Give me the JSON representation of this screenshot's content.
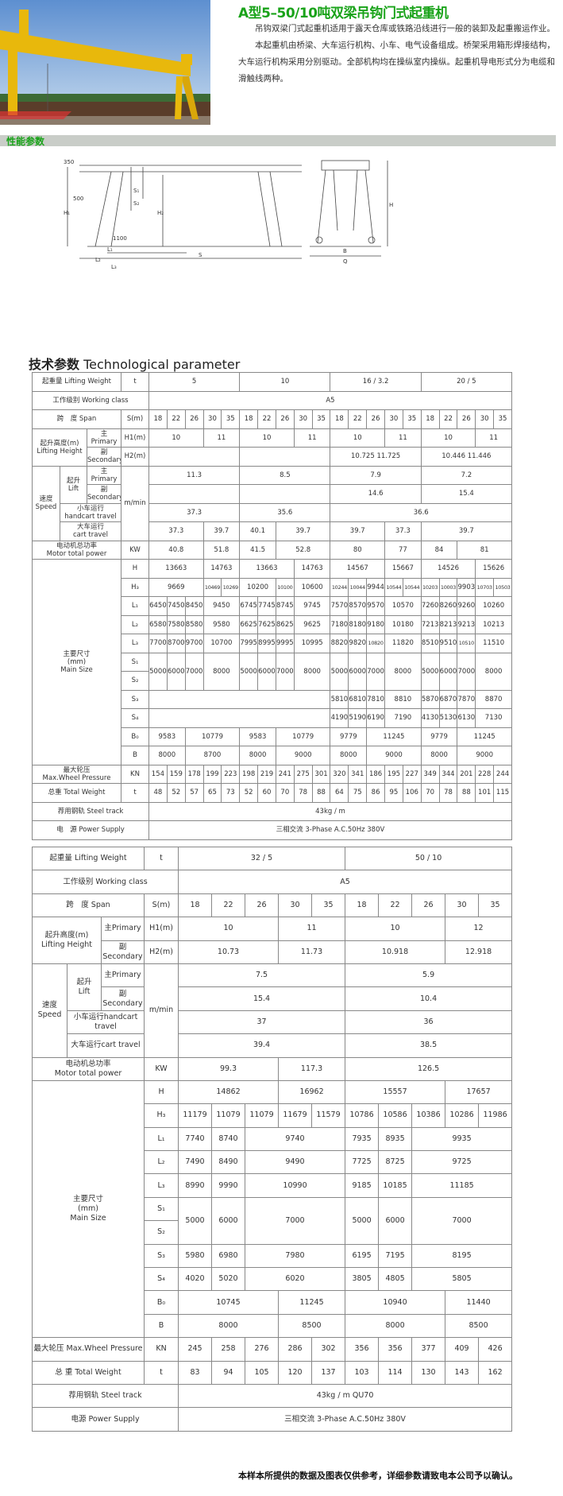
{
  "header": {
    "title": "A型5–50/10吨双梁吊钩门式起重机",
    "paragraphs": [
      "吊钩双梁门式起重机适用于露天仓库或铁路沿线进行一般的装卸及起重搬运作业。",
      "本起重机由桥梁、大车运行机构、小车、电气设备组成。桥架采用箱形焊接结构，大车运行机构采用分别驱动。全部机构均在操纵室内操纵。起重机导电形式分为电缆和滑触线两种。"
    ]
  },
  "section_label": "性能参数",
  "diagram_labels": {
    "d350": "350",
    "d500": "500",
    "s1": "S₁",
    "s2": "S₂",
    "h1": "H₁",
    "h2": "H₂",
    "l1": "L₁",
    "l2": "L₂",
    "l3": "L₃",
    "s": "S",
    "d1100": "1100",
    "h": "H",
    "b": "B",
    "q": "Q"
  },
  "tech_title_cn": "技术参数",
  "tech_title_en": "Technological parameter",
  "tables": [
    {
      "rows": [
        [
          {
            "t": "起重量 Lifting Weight",
            "cs": 3
          },
          "t",
          {
            "t": "5",
            "cs": 5
          },
          {
            "t": "10",
            "cs": 5
          },
          {
            "t": "16 / 3.2",
            "cs": 5
          },
          {
            "t": "20 / 5",
            "cs": 5
          }
        ],
        [
          {
            "t": "工作级别 Working class",
            "cs": 4
          },
          {
            "t": "A5",
            "cs": 20
          }
        ],
        [
          {
            "t": "跨　度 Span",
            "cs": 3
          },
          "S(m)",
          "18",
          "22",
          "26",
          "30",
          "35",
          "18",
          "22",
          "26",
          "30",
          "35",
          "18",
          "22",
          "26",
          "30",
          "35",
          "18",
          "22",
          "26",
          "30",
          "35"
        ],
        [
          {
            "t": "起升高度(m)\nLifting Height",
            "cs": 2,
            "rs": 2
          },
          "主\nPrimary",
          "H1(m)",
          {
            "t": "10",
            "cs": 3
          },
          {
            "t": "11",
            "cs": 2
          },
          {
            "t": "10",
            "cs": 3
          },
          {
            "t": "11",
            "cs": 2
          },
          {
            "t": "10",
            "cs": 3
          },
          {
            "t": "11",
            "cs": 2
          },
          {
            "t": "10",
            "cs": 3
          },
          {
            "t": "11",
            "cs": 2
          }
        ],
        [
          "副\nSecondary",
          "H2(m)",
          {
            "t": "",
            "cs": 5
          },
          {
            "t": "",
            "cs": 5
          },
          {
            "t": "10.725  11.725",
            "cs": 5
          },
          {
            "t": "10.446  11.446",
            "cs": 5
          }
        ],
        [
          {
            "t": "速度\nSpeed",
            "rs": 4
          },
          {
            "t": "起升\nLift",
            "rs": 2
          },
          "主\nPrimary",
          {
            "t": "m/min",
            "rs": 4
          },
          {
            "t": "11.3",
            "cs": 5
          },
          {
            "t": "8.5",
            "cs": 5
          },
          {
            "t": "7.9",
            "cs": 5
          },
          {
            "t": "7.2",
            "cs": 5
          }
        ],
        [
          "副\nSecondary",
          {
            "t": "",
            "cs": 5
          },
          {
            "t": "",
            "cs": 5
          },
          {
            "t": "14.6",
            "cs": 5
          },
          {
            "t": "15.4",
            "cs": 5
          }
        ],
        [
          {
            "t": "小车运行\nhandcart travel",
            "cs": 2
          },
          {
            "t": "37.3",
            "cs": 5
          },
          {
            "t": "35.6",
            "cs": 5
          },
          {
            "t": "36.6",
            "cs": 10
          }
        ],
        [
          {
            "t": "大车运行\ncart travel",
            "cs": 2
          },
          {
            "t": "37.3",
            "cs": 3
          },
          {
            "t": "39.7",
            "cs": 2
          },
          {
            "t": "40.1",
            "cs": 2
          },
          {
            "t": "39.7",
            "cs": 3
          },
          {
            "t": "39.7",
            "cs": 3
          },
          {
            "t": "37.3",
            "cs": 2
          },
          {
            "t": "39.7",
            "cs": 5
          }
        ],
        [
          {
            "t": "电动机总功率\nMotor total power",
            "cs": 3
          },
          "KW",
          {
            "t": "40.8",
            "cs": 3
          },
          {
            "t": "51.8",
            "cs": 2
          },
          {
            "t": "41.5",
            "cs": 2
          },
          {
            "t": "52.8",
            "cs": 3
          },
          {
            "t": "80",
            "cs": 3
          },
          {
            "t": "77",
            "cs": 2
          },
          {
            "t": "84",
            "cs": 2
          },
          {
            "t": "81",
            "cs": 3
          }
        ],
        [
          {
            "t": "主要尺寸\n(mm)\nMain Size",
            "cs": 3,
            "rs": 11
          },
          "H",
          {
            "t": "13663",
            "cs": 3
          },
          {
            "t": "14763",
            "cs": 2
          },
          {
            "t": "13663",
            "cs": 3
          },
          {
            "t": "14763",
            "cs": 2
          },
          {
            "t": "14567",
            "cs": 3
          },
          {
            "t": "15667",
            "cs": 2
          },
          {
            "t": "14526",
            "cs": 3
          },
          {
            "t": "15626",
            "cs": 2
          }
        ],
        [
          "H₃",
          {
            "t": "9669",
            "cs": 3
          },
          "10469",
          "10269",
          {
            "t": "10200",
            "cs": 2
          },
          "10100",
          {
            "t": "10600",
            "cs": 2
          },
          "10244",
          "10044",
          "9944",
          "10544",
          "10544",
          "10203",
          "10003",
          "9903",
          "10703",
          "10503"
        ],
        [
          "L₁",
          "6450",
          "7450",
          "8450",
          {
            "t": "9450",
            "cs": 2
          },
          "6745",
          "7745",
          "8745",
          {
            "t": "9745",
            "cs": 2
          },
          "7570",
          "8570",
          "9570",
          {
            "t": "10570",
            "cs": 2
          },
          "7260",
          "8260",
          "9260",
          {
            "t": "10260",
            "cs": 2
          }
        ],
        [
          "L₂",
          "6580",
          "7580",
          "8580",
          {
            "t": "9580",
            "cs": 2
          },
          "6625",
          "7625",
          "8625",
          {
            "t": "9625",
            "cs": 2
          },
          "7180",
          "8180",
          "9180",
          {
            "t": "10180",
            "cs": 2
          },
          "7213",
          "8213",
          "9213",
          {
            "t": "10213",
            "cs": 2
          }
        ],
        [
          "L₃",
          "7700",
          "8700",
          "9700",
          {
            "t": "10700",
            "cs": 2
          },
          "7995",
          "8995",
          "9995",
          {
            "t": "10995",
            "cs": 2
          },
          "8820",
          "9820",
          "10820",
          {
            "t": "11820",
            "cs": 2
          },
          "8510",
          "9510",
          "10510",
          {
            "t": "11510",
            "cs": 2
          }
        ],
        [
          "S₁",
          {
            "t": "5000",
            "rs": 2
          },
          {
            "t": "6000",
            "rs": 2
          },
          {
            "t": "7000",
            "rs": 2
          },
          {
            "t": "8000",
            "cs": 2,
            "rs": 2
          },
          {
            "t": "5000",
            "rs": 2
          },
          {
            "t": "6000",
            "rs": 2
          },
          {
            "t": "7000",
            "rs": 2
          },
          {
            "t": "8000",
            "cs": 2,
            "rs": 2
          },
          {
            "t": "5000",
            "rs": 2
          },
          {
            "t": "6000",
            "rs": 2
          },
          {
            "t": "7000",
            "rs": 2
          },
          {
            "t": "8000",
            "cs": 2,
            "rs": 2
          },
          {
            "t": "5000",
            "rs": 2
          },
          {
            "t": "6000",
            "rs": 2
          },
          {
            "t": "7000",
            "rs": 2
          },
          {
            "t": "8000",
            "cs": 2,
            "rs": 2
          }
        ],
        [
          "S₂"
        ],
        [
          "S₃",
          {
            "t": "",
            "cs": 10
          },
          "5810",
          "6810",
          "7810",
          {
            "t": "8810",
            "cs": 2
          },
          "5870",
          "6870",
          "7870",
          {
            "t": "8870",
            "cs": 2
          }
        ],
        [
          "S₄",
          {
            "t": "",
            "cs": 10
          },
          "4190",
          "5190",
          "6190",
          {
            "t": "7190",
            "cs": 2
          },
          "4130",
          "5130",
          "6130",
          {
            "t": "7130",
            "cs": 2
          }
        ],
        [
          "B₀",
          {
            "t": "9583",
            "cs": 2
          },
          {
            "t": "10779",
            "cs": 3
          },
          {
            "t": "9583",
            "cs": 2
          },
          {
            "t": "10779",
            "cs": 3
          },
          {
            "t": "9779",
            "cs": 2
          },
          {
            "t": "11245",
            "cs": 3
          },
          {
            "t": "9779",
            "cs": 2
          },
          {
            "t": "11245",
            "cs": 3
          }
        ],
        [
          "B",
          {
            "t": "8000",
            "cs": 2
          },
          {
            "t": "8700",
            "cs": 3
          },
          {
            "t": "8000",
            "cs": 2
          },
          {
            "t": "9000",
            "cs": 3
          },
          {
            "t": "8000",
            "cs": 2
          },
          {
            "t": "9000",
            "cs": 3
          },
          {
            "t": "8000",
            "cs": 2
          },
          {
            "t": "9000",
            "cs": 3
          }
        ],
        [
          {
            "t": "最大轮压\nMax.Wheel Pressure",
            "cs": 3
          },
          "KN",
          "154",
          "159",
          "178",
          "199",
          "223",
          "198",
          "219",
          "241",
          "275",
          "301",
          "320",
          "341",
          "186",
          "195",
          "227",
          "349",
          "344",
          "201",
          "228",
          "244"
        ],
        [
          {
            "t": "总重 Total Weight",
            "cs": 3
          },
          "t",
          "48",
          "52",
          "57",
          "65",
          "73",
          "52",
          "60",
          "70",
          "78",
          "88",
          "64",
          "75",
          "86",
          "95",
          "106",
          "70",
          "78",
          "88",
          "101",
          "115"
        ],
        [
          {
            "t": "荐用钢轨 Steel track",
            "cs": 4
          },
          {
            "t": "43kg / m",
            "cs": 20
          }
        ],
        [
          {
            "t": "电　源 Power Supply",
            "cs": 4
          },
          {
            "t": "三相交流 3-Phase A.C.50Hz 380V",
            "cs": 20
          }
        ]
      ]
    },
    {
      "rows": [
        [
          {
            "t": "起重量 Lifting Weight",
            "cs": 3
          },
          "t",
          {
            "t": "32 / 5",
            "cs": 5
          },
          {
            "t": "50 / 10",
            "cs": 5
          }
        ],
        [
          {
            "t": "工作级别 Working class",
            "cs": 4
          },
          {
            "t": "A5",
            "cs": 10
          }
        ],
        [
          {
            "t": "跨　度 Span",
            "cs": 3
          },
          "S(m)",
          "18",
          "22",
          "26",
          "30",
          "35",
          "18",
          "22",
          "26",
          "30",
          "35"
        ],
        [
          {
            "t": "起升高度(m)\nLifting Height",
            "cs": 2,
            "rs": 2
          },
          "主Primary",
          "H1(m)",
          {
            "t": "10",
            "cs": 3
          },
          {
            "t": "11",
            "cs": 2
          },
          {
            "t": "10",
            "cs": 3
          },
          {
            "t": "12",
            "cs": 2
          }
        ],
        [
          "副\nSecondary",
          "H2(m)",
          {
            "t": "10.73",
            "cs": 3
          },
          {
            "t": "11.73",
            "cs": 2
          },
          {
            "t": "10.918",
            "cs": 3
          },
          {
            "t": "12.918",
            "cs": 2
          }
        ],
        [
          {
            "t": "速度\nSpeed",
            "rs": 4
          },
          {
            "t": "起升\nLift",
            "rs": 2
          },
          "主Primary",
          {
            "t": "m/min",
            "rs": 4
          },
          {
            "t": "7.5",
            "cs": 5
          },
          {
            "t": "5.9",
            "cs": 5
          }
        ],
        [
          "副\nSecondary",
          {
            "t": "15.4",
            "cs": 5
          },
          {
            "t": "10.4",
            "cs": 5
          }
        ],
        [
          {
            "t": "小车运行handcart\ntravel",
            "cs": 2
          },
          {
            "t": "37",
            "cs": 5
          },
          {
            "t": "36",
            "cs": 5
          }
        ],
        [
          {
            "t": "大车运行cart travel",
            "cs": 2
          },
          {
            "t": "39.4",
            "cs": 5
          },
          {
            "t": "38.5",
            "cs": 5
          }
        ],
        [
          {
            "t": "电动机总功率\nMotor total power",
            "cs": 3
          },
          "KW",
          {
            "t": "99.3",
            "cs": 3
          },
          {
            "t": "117.3",
            "cs": 2
          },
          {
            "t": "126.5",
            "cs": 5
          }
        ],
        [
          {
            "t": "主要尺寸\n(mm)\nMain Size",
            "cs": 3,
            "rs": 11
          },
          "H",
          {
            "t": "14862",
            "cs": 3
          },
          {
            "t": "16962",
            "cs": 2
          },
          {
            "t": "15557",
            "cs": 3
          },
          {
            "t": "17657",
            "cs": 2
          }
        ],
        [
          "H₃",
          "11179",
          "11079",
          "11079",
          "11679",
          "11579",
          "10786",
          "10586",
          "10386",
          "10286",
          "11986"
        ],
        [
          "L₁",
          "7740",
          "8740",
          {
            "t": "9740",
            "cs": 3
          },
          "7935",
          "8935",
          {
            "t": "9935",
            "cs": 3
          }
        ],
        [
          "L₂",
          "7490",
          "8490",
          {
            "t": "9490",
            "cs": 3
          },
          "7725",
          "8725",
          {
            "t": "9725",
            "cs": 3
          }
        ],
        [
          "L₃",
          "8990",
          "9990",
          {
            "t": "10990",
            "cs": 3
          },
          "9185",
          "10185",
          {
            "t": "11185",
            "cs": 3
          }
        ],
        [
          "S₁",
          {
            "t": "5000",
            "rs": 2
          },
          {
            "t": "6000",
            "rs": 2
          },
          {
            "t": "7000",
            "cs": 3,
            "rs": 2
          },
          {
            "t": "5000",
            "rs": 2
          },
          {
            "t": "6000",
            "rs": 2
          },
          {
            "t": "7000",
            "cs": 3,
            "rs": 2
          }
        ],
        [
          "S₂"
        ],
        [
          "S₃",
          "5980",
          "6980",
          {
            "t": "7980",
            "cs": 3
          },
          "6195",
          "7195",
          {
            "t": "8195",
            "cs": 3
          }
        ],
        [
          "S₄",
          "4020",
          "5020",
          {
            "t": "6020",
            "cs": 3
          },
          "3805",
          "4805",
          {
            "t": "5805",
            "cs": 3
          }
        ],
        [
          "B₀",
          {
            "t": "10745",
            "cs": 3
          },
          {
            "t": "11245",
            "cs": 2
          },
          {
            "t": "10940",
            "cs": 3
          },
          {
            "t": "11440",
            "cs": 2
          }
        ],
        [
          "B",
          {
            "t": "8000",
            "cs": 3
          },
          {
            "t": "8500",
            "cs": 2
          },
          {
            "t": "8000",
            "cs": 3
          },
          {
            "t": "8500",
            "cs": 2
          }
        ],
        [
          {
            "t": "最大轮压 Max.Wheel Pressure",
            "cs": 3
          },
          "KN",
          "245",
          "258",
          "276",
          "286",
          "302",
          "356",
          "356",
          "377",
          "409",
          "426"
        ],
        [
          {
            "t": "总 重 Total Weight",
            "cs": 3
          },
          "t",
          "83",
          "94",
          "105",
          "120",
          "137",
          "103",
          "114",
          "130",
          "143",
          "162"
        ],
        [
          {
            "t": "荐用钢轨 Steel track",
            "cs": 4
          },
          {
            "t": "43kg / m  QU70",
            "cs": 10
          }
        ],
        [
          {
            "t": "电源 Power Supply",
            "cs": 4
          },
          {
            "t": "三相交流 3-Phase A.C.50Hz 380V",
            "cs": 10
          }
        ]
      ]
    }
  ],
  "footnote": "本样本所提供的数据及图表仅供参考，详细参数请致电本公司予以确认。",
  "colors": {
    "accent_green": "#1aa31a",
    "band_gray": "#c9cdc8",
    "crane_yellow": "#e8b80c"
  }
}
